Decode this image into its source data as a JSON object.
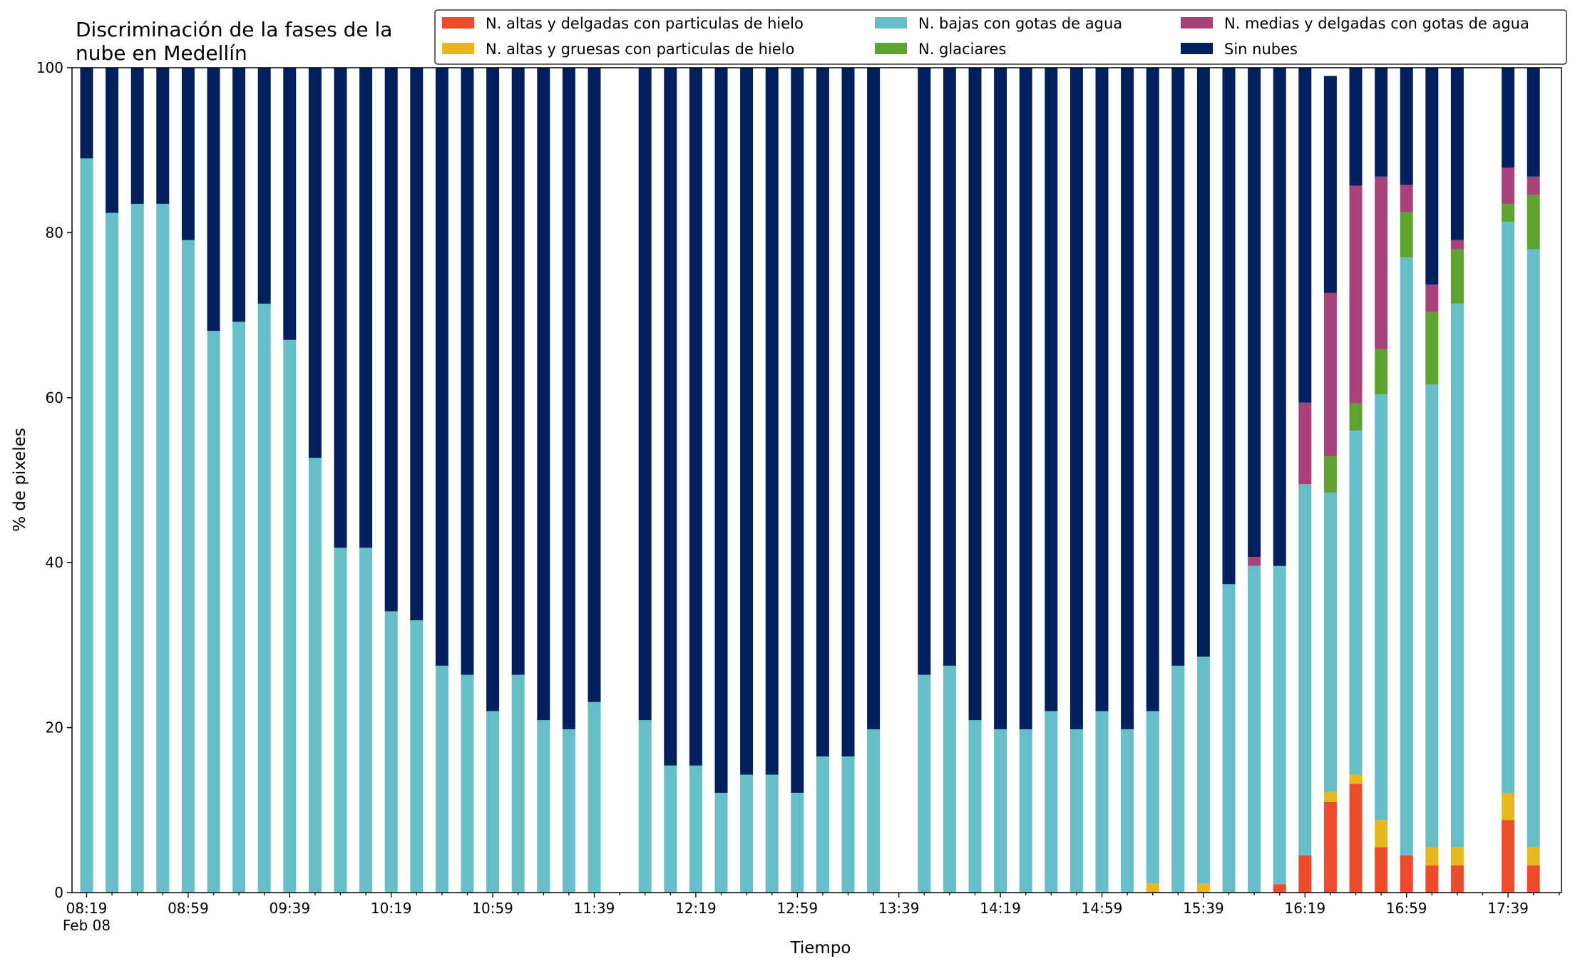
{
  "chart_data": {
    "type": "bar",
    "stacked": true,
    "title": [
      "Discriminación de la fases de la",
      "nube en Medellín"
    ],
    "xlabel": "Tiempo",
    "ylabel": "% de pixeles",
    "ylim": [
      0,
      100
    ],
    "yticks": [
      "0",
      "20",
      "40",
      "60",
      "80",
      "100"
    ],
    "xtick_labels": [
      "08:19",
      "08:59",
      "09:39",
      "10:19",
      "10:59",
      "11:39",
      "12:19",
      "12:59",
      "13:39",
      "14:19",
      "14:59",
      "15:39",
      "16:19",
      "16:59",
      "17:39"
    ],
    "xtick_sublabel": "Feb 08",
    "grid": false,
    "legend_position": "top-right",
    "categories": [
      "08:19",
      "08:29",
      "08:39",
      "08:49",
      "08:59",
      "09:09",
      "09:19",
      "09:29",
      "09:39",
      "09:49",
      "09:59",
      "10:09",
      "10:19",
      "10:29",
      "10:39",
      "10:49",
      "10:59",
      "11:09",
      "11:19",
      "11:29",
      "11:39",
      "11:49",
      "11:59",
      "12:09",
      "12:19",
      "12:29",
      "12:39",
      "12:49",
      "12:59",
      "13:09",
      "13:19",
      "13:29",
      "13:39",
      "13:49",
      "13:59",
      "14:09",
      "14:19",
      "14:29",
      "14:39",
      "14:49",
      "14:59",
      "15:09",
      "15:19",
      "15:29",
      "15:39",
      "15:49",
      "15:59",
      "16:09",
      "16:19",
      "16:29",
      "16:39",
      "16:49",
      "16:59",
      "17:09",
      "17:19",
      "17:29",
      "17:39",
      "17:49"
    ],
    "series": [
      {
        "name": "N. altas y delgadas con particulas de hielo",
        "color": "#ee4b2b",
        "values": [
          0,
          0,
          0,
          0,
          0,
          0,
          0,
          0,
          0,
          0,
          0,
          0,
          0,
          0,
          0,
          0,
          0,
          0,
          0,
          0,
          0,
          null,
          0,
          0,
          0,
          0,
          0,
          0,
          0,
          0,
          0,
          0,
          null,
          0,
          0,
          0,
          0,
          0,
          0,
          0,
          0,
          0,
          0,
          0,
          0,
          0,
          0,
          1,
          4.5,
          11,
          13.2,
          5.5,
          4.5,
          3.3,
          3.3,
          null,
          8.8,
          3.3
        ]
      },
      {
        "name": "N. altas y gruesas con particulas de hielo",
        "color": "#e6b81e",
        "values": [
          0,
          0,
          0,
          0,
          0,
          0,
          0,
          0,
          0,
          0,
          0,
          0,
          0,
          0,
          0,
          0,
          0,
          0,
          0,
          0,
          0,
          null,
          0,
          0,
          0,
          0,
          0,
          0,
          0,
          0,
          0,
          0,
          null,
          0,
          0,
          0,
          0,
          0,
          0,
          0,
          0,
          0,
          1.1,
          0,
          1.1,
          0,
          0,
          0,
          0,
          1.2,
          1.1,
          3.3,
          0,
          2.2,
          2.2,
          null,
          3.3,
          2.2
        ]
      },
      {
        "name": "N. bajas con gotas de agua",
        "color": "#66bec9",
        "values": [
          89,
          82.4,
          83.5,
          83.5,
          79.1,
          68.1,
          69.2,
          71.4,
          67,
          52.7,
          41.8,
          41.8,
          34.1,
          33,
          27.5,
          26.4,
          22,
          26.4,
          20.9,
          19.8,
          23.1,
          null,
          20.9,
          15.4,
          15.4,
          12.1,
          14.3,
          14.3,
          12.1,
          16.5,
          16.5,
          19.8,
          null,
          26.4,
          27.5,
          20.9,
          19.8,
          19.8,
          22,
          19.8,
          22,
          19.8,
          20.9,
          27.5,
          27.5,
          37.4,
          39.6,
          38.6,
          45,
          36.3,
          41.7,
          51.6,
          72.5,
          56.1,
          65.9,
          null,
          69.2,
          72.5
        ]
      },
      {
        "name": "N. glaciares",
        "color": "#5ea22f",
        "values": [
          0,
          0,
          0,
          0,
          0,
          0,
          0,
          0,
          0,
          0,
          0,
          0,
          0,
          0,
          0,
          0,
          0,
          0,
          0,
          0,
          0,
          null,
          0,
          0,
          0,
          0,
          0,
          0,
          0,
          0,
          0,
          0,
          null,
          0,
          0,
          0,
          0,
          0,
          0,
          0,
          0,
          0,
          0,
          0,
          0,
          0,
          0,
          0,
          0,
          4.4,
          3.3,
          5.5,
          5.5,
          8.8,
          6.6,
          null,
          2.2,
          6.6
        ]
      },
      {
        "name": "N. medias y delgadas con gotas de agua",
        "color": "#a8427a",
        "values": [
          0,
          0,
          0,
          0,
          0,
          0,
          0,
          0,
          0,
          0,
          0,
          0,
          0,
          0,
          0,
          0,
          0,
          0,
          0,
          0,
          0,
          null,
          0,
          0,
          0,
          0,
          0,
          0,
          0,
          0,
          0,
          0,
          null,
          0,
          0,
          0,
          0,
          0,
          0,
          0,
          0,
          0,
          0,
          0,
          0,
          0,
          1.1,
          0,
          9.9,
          19.8,
          26.4,
          20.9,
          3.3,
          3.3,
          1.1,
          null,
          4.4,
          2.2
        ]
      },
      {
        "name": "Sin nubes",
        "color": "#03205e",
        "values": [
          11,
          17.6,
          16.5,
          16.5,
          20.9,
          31.9,
          30.8,
          28.6,
          33,
          47.3,
          58.2,
          58.2,
          65.9,
          67,
          72.5,
          73.6,
          78,
          73.6,
          79.1,
          80.2,
          76.9,
          null,
          79.1,
          84.6,
          84.6,
          87.9,
          85.7,
          85.7,
          87.9,
          83.5,
          83.5,
          80.2,
          null,
          73.6,
          72.5,
          79.1,
          80.2,
          80.2,
          78,
          80.2,
          78,
          80.2,
          78,
          72.5,
          71.4,
          62.6,
          59.3,
          60.4,
          40.6,
          26.3,
          14.3,
          13.2,
          14.2,
          26.3,
          20.9,
          null,
          12.1,
          13.2
        ]
      }
    ]
  }
}
